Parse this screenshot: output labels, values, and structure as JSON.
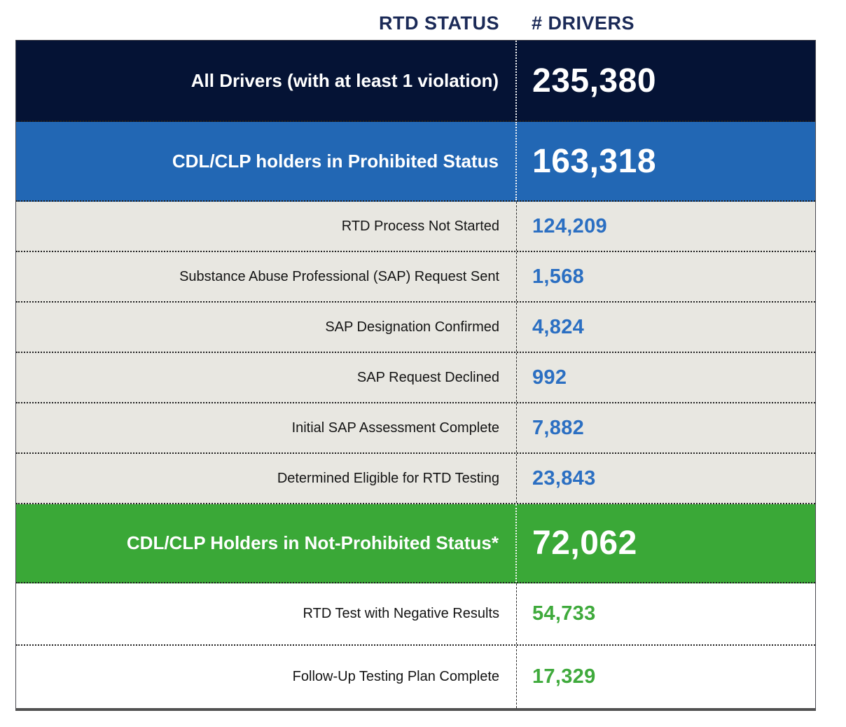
{
  "header": {
    "status_label": "RTD STATUS",
    "drivers_label": "# DRIVERS"
  },
  "rows": [
    {
      "label": "All Drivers (with at least 1 violation)",
      "value": "235,380",
      "band": "navy"
    },
    {
      "label": "CDL/CLP holders in Prohibited Status",
      "value": "163,318",
      "band": "blue"
    },
    {
      "label": "RTD Process Not Started",
      "value": "124,209",
      "band": "gray"
    },
    {
      "label": "Substance Abuse Professional (SAP) Request Sent",
      "value": "1,568",
      "band": "gray"
    },
    {
      "label": "SAP Designation Confirmed",
      "value": "4,824",
      "band": "gray"
    },
    {
      "label": "SAP Request Declined",
      "value": "992",
      "band": "gray"
    },
    {
      "label": "Initial SAP Assessment Complete",
      "value": "7,882",
      "band": "gray"
    },
    {
      "label": "Determined Eligible for RTD Testing",
      "value": "23,843",
      "band": "gray"
    },
    {
      "label": "CDL/CLP Holders in Not-Prohibited Status*",
      "value": "72,062",
      "band": "green"
    },
    {
      "label": "RTD Test with Negative Results",
      "value": "54,733",
      "band": "white"
    },
    {
      "label": "Follow-Up Testing Plan Complete",
      "value": "17,329",
      "band": "white"
    }
  ],
  "colors": {
    "navy_band": "#051335",
    "blue_band": "#2267b4",
    "green_band": "#3aa837",
    "gray_band": "#e8e7e1",
    "header_text": "#1b2a57",
    "blue_number": "#2b6fc2",
    "green_number": "#3faa3c"
  },
  "chart_data": {
    "type": "table",
    "columns": [
      "RTD STATUS",
      "# DRIVERS"
    ],
    "rows": [
      {
        "rtd_status": "All Drivers (with at least 1 violation)",
        "drivers": 235380,
        "emphasis": "navy-total"
      },
      {
        "rtd_status": "CDL/CLP holders in Prohibited Status",
        "drivers": 163318,
        "emphasis": "blue-subtotal"
      },
      {
        "rtd_status": "RTD Process Not Started",
        "drivers": 124209,
        "emphasis": "detail"
      },
      {
        "rtd_status": "Substance Abuse Professional (SAP) Request Sent",
        "drivers": 1568,
        "emphasis": "detail"
      },
      {
        "rtd_status": "SAP Designation Confirmed",
        "drivers": 4824,
        "emphasis": "detail"
      },
      {
        "rtd_status": "SAP Request Declined",
        "drivers": 992,
        "emphasis": "detail"
      },
      {
        "rtd_status": "Initial SAP Assessment Complete",
        "drivers": 7882,
        "emphasis": "detail"
      },
      {
        "rtd_status": "Determined Eligible for RTD Testing",
        "drivers": 23843,
        "emphasis": "detail"
      },
      {
        "rtd_status": "CDL/CLP Holders in Not-Prohibited Status*",
        "drivers": 72062,
        "emphasis": "green-subtotal"
      },
      {
        "rtd_status": "RTD Test with Negative Results",
        "drivers": 54733,
        "emphasis": "detail"
      },
      {
        "rtd_status": "Follow-Up Testing Plan Complete",
        "drivers": 17329,
        "emphasis": "detail"
      }
    ]
  }
}
